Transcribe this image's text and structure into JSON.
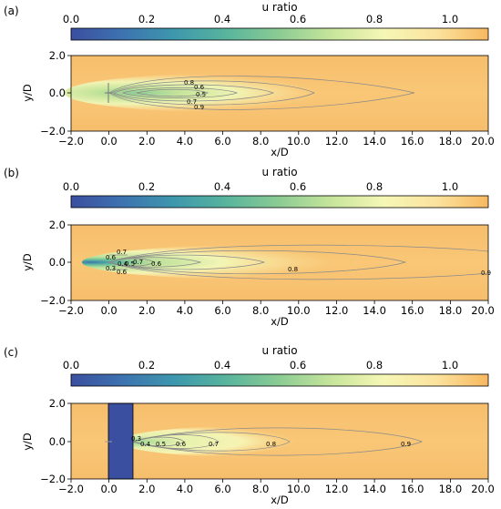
{
  "chart_data": {
    "type": "heatmap",
    "colormap": {
      "name": "u ratio",
      "stops": [
        "#3b4fa0",
        "#3d73b0",
        "#3d98ad",
        "#59b59c",
        "#8ccc94",
        "#c7e59b",
        "#f6f7b6",
        "#fbe39e",
        "#f7b85f"
      ],
      "range": [
        0.0,
        1.1
      ]
    },
    "panels": [
      {
        "letter": "(a)",
        "colorbar": {
          "label": "u ratio",
          "ticks": [
            "0.0",
            "0.2",
            "0.4",
            "0.6",
            "0.8",
            "1.0"
          ]
        },
        "xlabel": "x/D",
        "ylabel": "y/D",
        "xlim": [
          -2.0,
          20.0
        ],
        "ylim": [
          -2.0,
          2.0
        ],
        "xticks": [
          "−2.0",
          "0.0",
          "2.0",
          "4.0",
          "6.0",
          "8.0",
          "10.0",
          "12.0",
          "14.0",
          "16.0",
          "18.0",
          "20.0"
        ],
        "yticks": [
          "−2.0",
          "0.0",
          "2.0"
        ],
        "contour_labels": [
          "0.8",
          "0.6",
          "0.5",
          "0.7",
          "0.9"
        ],
        "disk": false
      },
      {
        "letter": "(b)",
        "colorbar": {
          "label": "u ratio",
          "ticks": [
            "0.0",
            "0.2",
            "0.4",
            "0.6",
            "0.8",
            "1.0"
          ]
        },
        "xlabel": "x/D",
        "ylabel": "y/D",
        "xlim": [
          -2.0,
          20.0
        ],
        "ylim": [
          -2.0,
          2.0
        ],
        "xticks": [
          "−2.0",
          "0.0",
          "2.0",
          "4.0",
          "6.0",
          "8.0",
          "10.0",
          "12.0",
          "14.0",
          "16.0",
          "18.0",
          "20.0"
        ],
        "yticks": [
          "−2.0",
          "0.0",
          "2.0"
        ],
        "contour_labels": [
          "0.7",
          "0.6",
          "0.4",
          "0.5",
          "0.7",
          "0.3",
          "0.6",
          "0.6",
          "0.8",
          "0.9"
        ],
        "disk": false
      },
      {
        "letter": "(c)",
        "colorbar": {
          "label": "u ratio",
          "ticks": [
            "0.0",
            "0.2",
            "0.4",
            "0.6",
            "0.8",
            "1.0"
          ]
        },
        "xlabel": "x/D",
        "ylabel": "y/D",
        "xlim": [
          -2.0,
          20.0
        ],
        "ylim": [
          -2.0,
          2.0
        ],
        "xticks": [
          "−2.0",
          "0.0",
          "2.0",
          "4.0",
          "6.0",
          "8.0",
          "10.0",
          "12.0",
          "14.0",
          "16.0",
          "18.0",
          "20.0"
        ],
        "yticks": [
          "−2.0",
          "0.0",
          "2.0"
        ],
        "contour_labels": [
          "0.3",
          "0.4",
          "0.5",
          "0.6",
          "0.7",
          "0.8",
          "0.9"
        ],
        "disk": true,
        "disk_x_range": [
          0.0,
          1.3
        ]
      }
    ]
  }
}
